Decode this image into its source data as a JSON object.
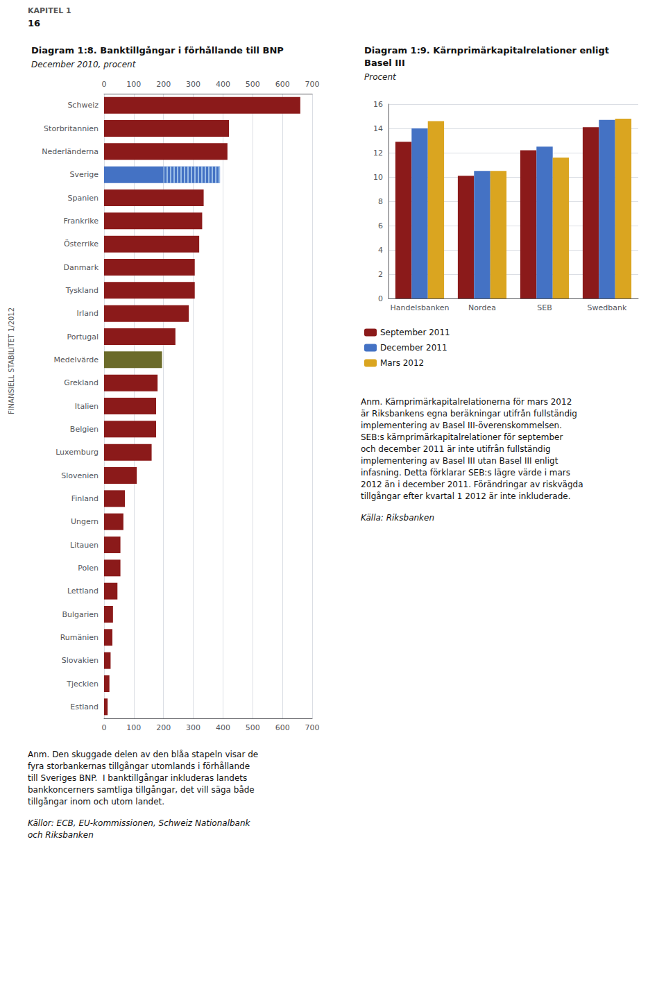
{
  "annotations": [
    "KAPITEL 1",
    "16",
    "FINANSIELL STABILITET 1/2012"
  ],
  "chart_data": [
    {
      "type": "bar",
      "orientation": "horizontal",
      "stacked": true,
      "title": "Diagram 1:8. Banktillgångar i förhållande till BNP",
      "subtitle": "December 2010, procent",
      "categories": [
        "Schweiz",
        "Storbritannien",
        "Nederländerna",
        "Sverige",
        "Spanien",
        "Frankrike",
        "Österrike",
        "Danmark",
        "Tyskland",
        "Irland",
        "Portugal",
        "Medelvärde",
        "Grekland",
        "Italien",
        "Belgien",
        "Luxemburg",
        "Slovenien",
        "Finland",
        "Ungern",
        "Litauen",
        "Polen",
        "Lettland",
        "Bulgarien",
        "Rumänien",
        "Slovakien",
        "Tjeckien",
        "Estland"
      ],
      "series": [
        {
          "colors": [
            "#8B1A1A",
            "#8B1A1A",
            "#8B1A1A",
            "#4472C4",
            "#8B1A1A",
            "#8B1A1A",
            "#8B1A1A",
            "#8B1A1A",
            "#8B1A1A",
            "#8B1A1A",
            "#8B1A1A",
            "#6B6B2A",
            "#8B1A1A",
            "#8B1A1A",
            "#8B1A1A",
            "#8B1A1A",
            "#8B1A1A",
            "#8B1A1A",
            "#8B1A1A",
            "#8B1A1A",
            "#8B1A1A",
            "#8B1A1A",
            "#8B1A1A",
            "#8B1A1A",
            "#8B1A1A",
            "#8B1A1A",
            "#8B1A1A"
          ],
          "values": [
            660,
            420,
            415,
            200,
            335,
            330,
            320,
            305,
            305,
            285,
            240,
            195,
            180,
            175,
            175,
            160,
            110,
            70,
            65,
            55,
            55,
            45,
            30,
            28,
            22,
            18,
            12
          ]
        },
        {
          "color": "#4472C4",
          "values": [
            null,
            null,
            null,
            190,
            null,
            null,
            null,
            null,
            null,
            null,
            null,
            null,
            null,
            null,
            null,
            null,
            null,
            null,
            null,
            null,
            null,
            null,
            null,
            null,
            null,
            null,
            null
          ]
        }
      ],
      "xlim": [
        0,
        700
      ],
      "xticks": [
        0,
        100,
        200,
        300,
        400,
        500,
        600,
        700
      ],
      "grid": true,
      "annotations": [
        "Anm. Den skuggade delen av den blåa stapeln visar de\nfyra storbankernas tillgångar utomlands i förhållande\ntill Sveriges BNP.  I banktillgångar inkluderas landets\nbankkoncerners samtliga tillgångar, det vill säga både\ntillgångar inom och utom landet.",
        "Källor: ECB, EU-kommissionen, Schweiz Nationalbank\noch Riksbanken"
      ]
    },
    {
      "type": "bar",
      "title": "Diagram 1:9. Kärnprimärkapitalrelationer enligt\nBasel III",
      "subtitle": "Procent",
      "categories": [
        "Handelsbanken",
        "Nordea",
        "SEB",
        "Swedbank"
      ],
      "series": [
        {
          "name": "September 2011",
          "color": "#8B1A1A",
          "values": [
            12.9,
            10.1,
            12.2,
            14.1
          ]
        },
        {
          "name": "December 2011",
          "color": "#4472C4",
          "values": [
            14.0,
            10.5,
            12.5,
            14.7
          ]
        },
        {
          "name": "Mars 2012",
          "color": "#DAA520",
          "values": [
            14.6,
            10.5,
            11.6,
            14.8
          ]
        }
      ],
      "ylim": [
        0,
        16
      ],
      "yticks": [
        0,
        2,
        4,
        6,
        8,
        10,
        12,
        14,
        16
      ],
      "grid": true,
      "legend": "lower left",
      "annotations": [
        "Anm. Kärnprimärkapitalrelationerna för mars 2012\när Riksbankens egna beräkningar utifrån fullständig\nimplementering av Basel III-överenskommelsen.\nSEB:s kärnprimärkapitalrelationer för september\noch december 2011 är inte utifrån fullständig\nimplementering av Basel III utan Basel III enligt\ninfasning. Detta förklarar SEB:s lägre värde i mars\n2012 än i december 2011. Förändringar av riskvägda\ntillgångar efter kvartal 1 2012 är inte inkluderade.",
        "Källa: Riksbanken"
      ]
    }
  ]
}
